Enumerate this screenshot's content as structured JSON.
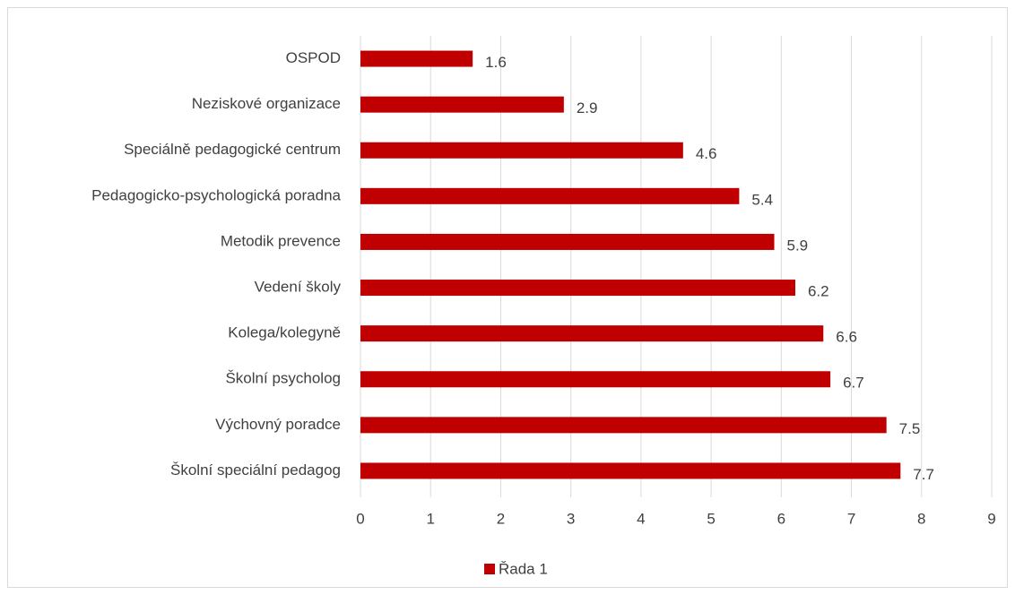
{
  "chart_data": {
    "type": "barh",
    "categories": [
      "OSPOD",
      "Neziskové organizace",
      "Speciálně pedagogické centrum",
      "Pedagogicko-psychologická poradna",
      "Metodik prevence",
      "Vedení školy",
      "Kolega/kolegyně",
      "Školní psycholog",
      "Výchovný poradce",
      "Školní speciální pedagog"
    ],
    "series": [
      {
        "name": "Řada 1",
        "color": "#c00000",
        "values": [
          1.6,
          2.9,
          4.6,
          5.4,
          5.9,
          6.2,
          6.6,
          6.7,
          7.5,
          7.7
        ]
      }
    ],
    "xlim": [
      0,
      9
    ],
    "xticks": [
      0,
      1,
      2,
      3,
      4,
      5,
      6,
      7,
      8,
      9
    ],
    "grid": true,
    "legend": "bottom"
  }
}
